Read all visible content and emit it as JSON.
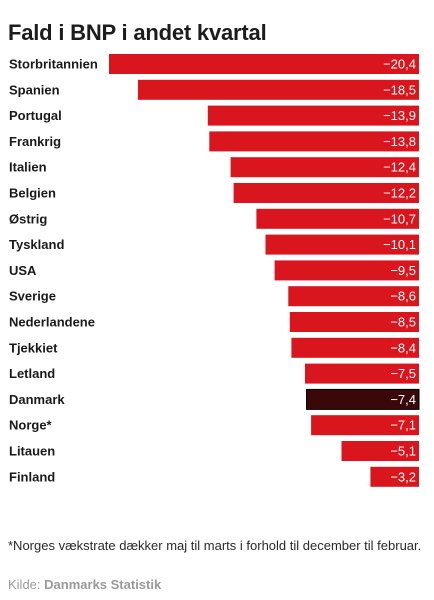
{
  "colors": {
    "bar": "#d9161e",
    "highlight": "#3a0808",
    "value_text": "#ffffff"
  },
  "chart_data": {
    "type": "bar",
    "orientation": "horizontal",
    "title": "Fald i BNP i andet kvartal",
    "categories": [
      "Storbritannien",
      "Spanien",
      "Portugal",
      "Frankrig",
      "Italien",
      "Belgien",
      "Østrig",
      "Tyskland",
      "USA",
      "Sverige",
      "Nederlandene",
      "Tjekkiet",
      "Letland",
      "Danmark",
      "Norge*",
      "Litauen",
      "Finland"
    ],
    "values": [
      -20.4,
      -18.5,
      -13.9,
      -13.8,
      -12.4,
      -12.2,
      -10.7,
      -10.1,
      -9.5,
      -8.6,
      -8.5,
      -8.4,
      -7.5,
      -7.4,
      -7.1,
      -5.1,
      -3.2
    ],
    "value_labels": [
      "−20,4",
      "−18,5",
      "−13,9",
      "−13,8",
      "−12,4",
      "−12,2",
      "−10,7",
      "−10,1",
      "−9,5",
      "−8,6",
      "−8,5",
      "−8,4",
      "−7,5",
      "−7,4",
      "−7,1",
      "−5,1",
      "−3,2"
    ],
    "highlighted": "Danmark",
    "xlim": [
      -20.4,
      0
    ],
    "grid": false,
    "legend": "none"
  },
  "footnote": "*Norges vækstrate dækker maj til marts i forhold til december til februar.",
  "source": {
    "prefix": "Kilde:",
    "name": "Danmarks Statistik"
  }
}
